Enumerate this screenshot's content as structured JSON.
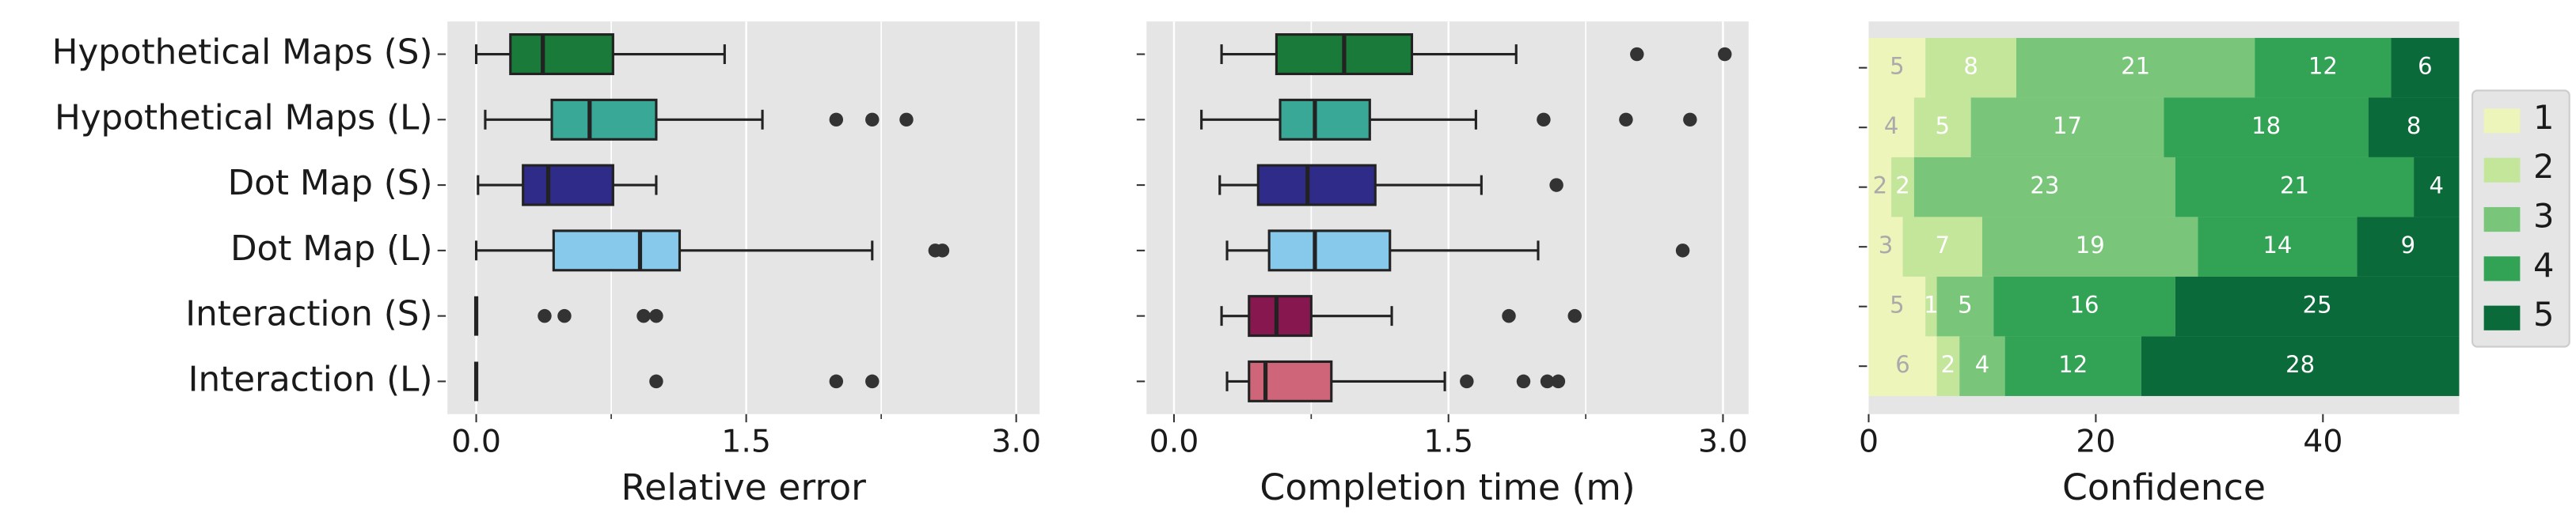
{
  "chart_data": [
    {
      "type": "box",
      "xlabel": "Relative error",
      "categories": [
        "Hypothetical Maps (S)",
        "Hypothetical Maps (L)",
        "Dot Map (S)",
        "Dot Map (L)",
        "Interaction (S)",
        "Interaction (L)"
      ],
      "colors": [
        "#197a3a",
        "#3aa897",
        "#2f2b88",
        "#86c9ea",
        "#86184f",
        "#cf6578"
      ],
      "boxes": [
        {
          "whislo": 0.0,
          "q1": 0.19,
          "med": 0.37,
          "q3": 0.76,
          "whishi": 1.38,
          "fliers": []
        },
        {
          "whislo": 0.05,
          "q1": 0.42,
          "med": 0.63,
          "q3": 1.0,
          "whishi": 1.59,
          "fliers": [
            2.0,
            2.2,
            2.39
          ]
        },
        {
          "whislo": 0.01,
          "q1": 0.26,
          "med": 0.4,
          "q3": 0.76,
          "whishi": 1.0,
          "fliers": []
        },
        {
          "whislo": 0.0,
          "q1": 0.43,
          "med": 0.91,
          "q3": 1.13,
          "whishi": 2.2,
          "fliers": [
            2.55,
            2.59
          ]
        },
        {
          "whislo": 0.0,
          "q1": 0.0,
          "med": 0.0,
          "q3": 0.0,
          "whishi": 0.0,
          "fliers": [
            0.38,
            0.49,
            0.93,
            1.0
          ]
        },
        {
          "whislo": 0.0,
          "q1": 0.0,
          "med": 0.0,
          "q3": 0.0,
          "whishi": 0.0,
          "fliers": [
            1.0,
            2.0,
            2.2
          ]
        }
      ],
      "xlim": [
        -0.16,
        3.13
      ],
      "xticks": [
        {
          "value": 0,
          "label": "0.0"
        },
        {
          "value": 1.5,
          "label": "1.5"
        },
        {
          "value": 3.0,
          "label": "3.0"
        }
      ],
      "xticks_minor": [
        0.75,
        2.25
      ],
      "grid": true
    },
    {
      "type": "box",
      "xlabel": "Completion time (m)",
      "categories": [
        null,
        null,
        null,
        null,
        null,
        null
      ],
      "colors": [
        "#197a3a",
        "#3aa897",
        "#2f2b88",
        "#86c9ea",
        "#86184f",
        "#cf6578"
      ],
      "boxes": [
        {
          "whislo": 0.26,
          "q1": 0.56,
          "med": 0.93,
          "q3": 1.3,
          "whishi": 1.87,
          "fliers": [
            2.53,
            3.01
          ]
        },
        {
          "whislo": 0.15,
          "q1": 0.58,
          "med": 0.77,
          "q3": 1.07,
          "whishi": 1.65,
          "fliers": [
            2.02,
            2.47,
            2.82
          ]
        },
        {
          "whislo": 0.25,
          "q1": 0.46,
          "med": 0.73,
          "q3": 1.1,
          "whishi": 1.68,
          "fliers": [
            2.09
          ]
        },
        {
          "whislo": 0.29,
          "q1": 0.52,
          "med": 0.77,
          "q3": 1.18,
          "whishi": 1.99,
          "fliers": [
            2.78
          ]
        },
        {
          "whislo": 0.26,
          "q1": 0.41,
          "med": 0.56,
          "q3": 0.75,
          "whishi": 1.19,
          "fliers": [
            1.83,
            2.19
          ]
        },
        {
          "whislo": 0.29,
          "q1": 0.41,
          "med": 0.5,
          "q3": 0.86,
          "whishi": 1.48,
          "fliers": [
            1.6,
            1.91,
            2.04,
            2.1
          ]
        }
      ],
      "xlim": [
        -0.15,
        3.14
      ],
      "xticks": [
        {
          "value": 0,
          "label": "0.0"
        },
        {
          "value": 1.5,
          "label": "1.5"
        },
        {
          "value": 3.0,
          "label": "3.0"
        }
      ],
      "xticks_minor": [
        0.75,
        2.25
      ],
      "grid": true
    },
    {
      "type": "stacked_barh",
      "xlabel": "Confidence",
      "categories": [
        null,
        null,
        null,
        null,
        null,
        null
      ],
      "series": [
        {
          "name": "1",
          "color": "#eef5bb",
          "values": [
            5,
            4,
            2,
            3,
            5,
            6
          ]
        },
        {
          "name": "2",
          "color": "#c3e69b",
          "values": [
            8,
            5,
            2,
            7,
            1,
            2
          ]
        },
        {
          "name": "3",
          "color": "#79c57a",
          "values": [
            21,
            17,
            23,
            19,
            5,
            4
          ]
        },
        {
          "name": "4",
          "color": "#32a254",
          "values": [
            12,
            18,
            21,
            14,
            16,
            12
          ]
        },
        {
          "name": "5",
          "color": "#0b6a39",
          "values": [
            6,
            8,
            4,
            9,
            25,
            28
          ]
        }
      ],
      "xlim": [
        0,
        52
      ],
      "xticks": [
        0,
        20,
        40
      ],
      "legend": "right"
    }
  ]
}
